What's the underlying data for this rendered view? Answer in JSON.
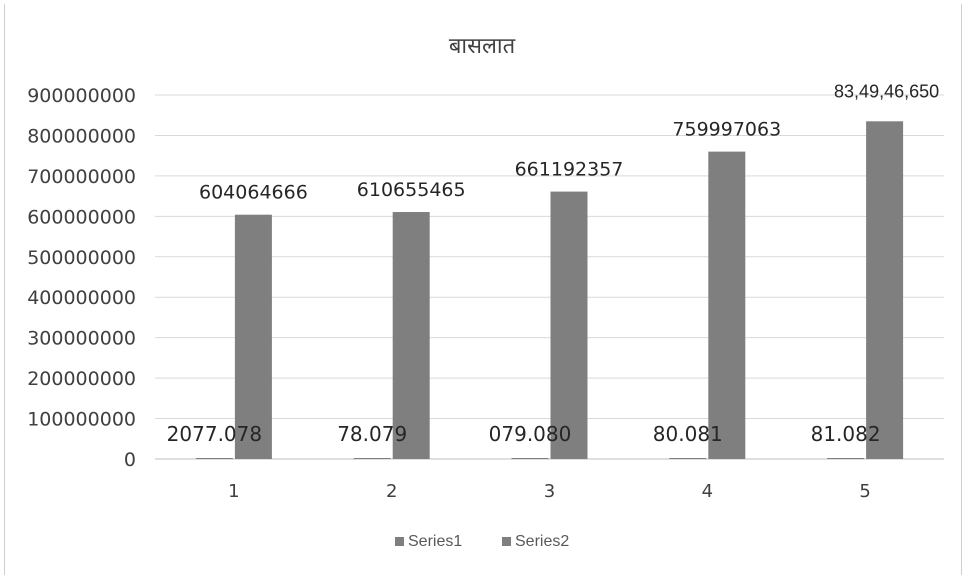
{
  "chart_data": {
    "type": "bar",
    "title": "बासलात",
    "categories": [
      "1",
      "2",
      "3",
      "4",
      "5"
    ],
    "series": [
      {
        "name": "Series1",
        "values": [
          2077.078,
          78.079,
          79.08,
          80.081,
          81.082
        ]
      },
      {
        "name": "Series2",
        "values": [
          604064666,
          610655465,
          661192357,
          759997063,
          834946650
        ]
      }
    ],
    "series1_labels": [
      "2077.078",
      "78.079",
      "079.080",
      "80.081",
      "81.082"
    ],
    "series2_labels": [
      "604064666",
      "610655465",
      "661192357",
      "759997063",
      "83,49,46,650"
    ],
    "y_ticks": [
      "0",
      "100000000",
      "200000000",
      "300000000",
      "400000000",
      "500000000",
      "600000000",
      "700000000",
      "800000000",
      "900000000"
    ],
    "ylim": [
      0,
      900000000
    ],
    "xlabel": "",
    "ylabel": "",
    "grid": true,
    "legend_position": "bottom",
    "colors": {
      "series1": "#7f7f7f",
      "series2": "#7f7f7f",
      "grid": "#d9d9d9",
      "text": "#404040"
    }
  }
}
